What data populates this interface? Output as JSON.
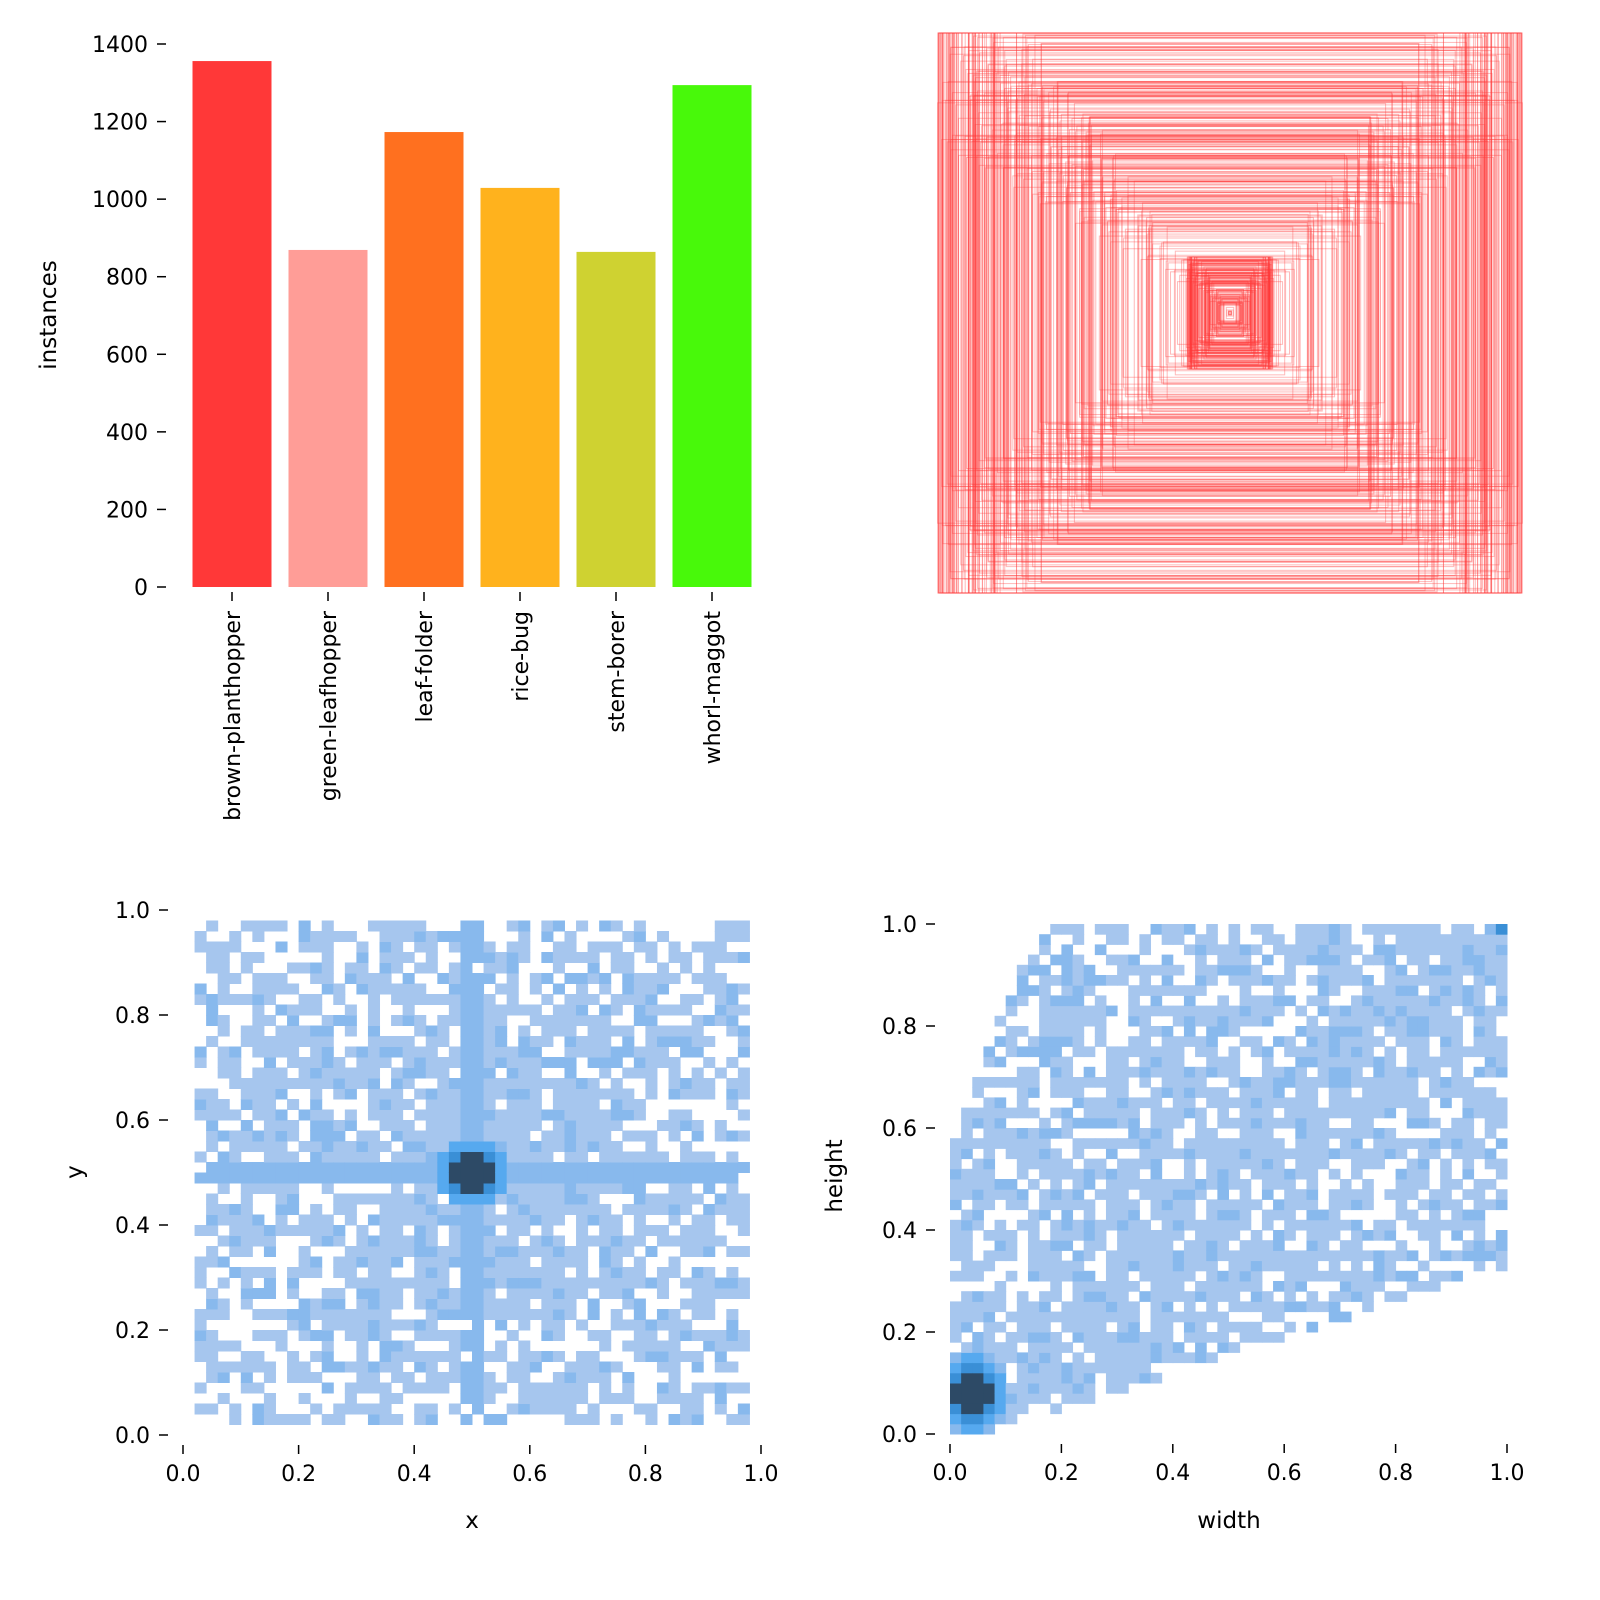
{
  "chart_data": [
    {
      "type": "bar",
      "title": "",
      "xlabel": "",
      "ylabel": "instances",
      "categories": [
        "brown-planthopper",
        "green-leafhopper",
        "leaf-folder",
        "rice-bug",
        "stem-borer",
        "whorl-maggot"
      ],
      "values": [
        1356,
        869,
        1173,
        1029,
        864,
        1294
      ],
      "colors": [
        "#FF3838",
        "#FF9D97",
        "#FF701F",
        "#FFB21D",
        "#CFD231",
        "#48F90A"
      ],
      "ylim": [
        0,
        1400
      ],
      "yticks": [
        "0",
        "200",
        "400",
        "600",
        "800",
        "1000",
        "1200",
        "1400"
      ]
    },
    {
      "type": "other",
      "description_kind": "bounding-box overlay",
      "color": "#FF3838"
    },
    {
      "type": "heatmap",
      "xlabel": "x",
      "ylabel": "y",
      "xlim": [
        0,
        1
      ],
      "ylim": [
        0,
        1
      ],
      "xticks": [
        "0.0",
        "0.2",
        "0.4",
        "0.6",
        "0.8",
        "1.0"
      ],
      "yticks": [
        "0.0",
        "0.2",
        "0.4",
        "0.6",
        "0.8",
        "1.0"
      ],
      "peak": [
        0.5,
        0.5
      ]
    },
    {
      "type": "heatmap",
      "xlabel": "width",
      "ylabel": "height",
      "xlim": [
        0,
        1
      ],
      "ylim": [
        0,
        1
      ],
      "xticks": [
        "0.0",
        "0.2",
        "0.4",
        "0.6",
        "0.8",
        "1.0"
      ],
      "yticks": [
        "0.0",
        "0.2",
        "0.4",
        "0.6",
        "0.8",
        "1.0"
      ],
      "peak": [
        0.04,
        0.08
      ]
    }
  ]
}
